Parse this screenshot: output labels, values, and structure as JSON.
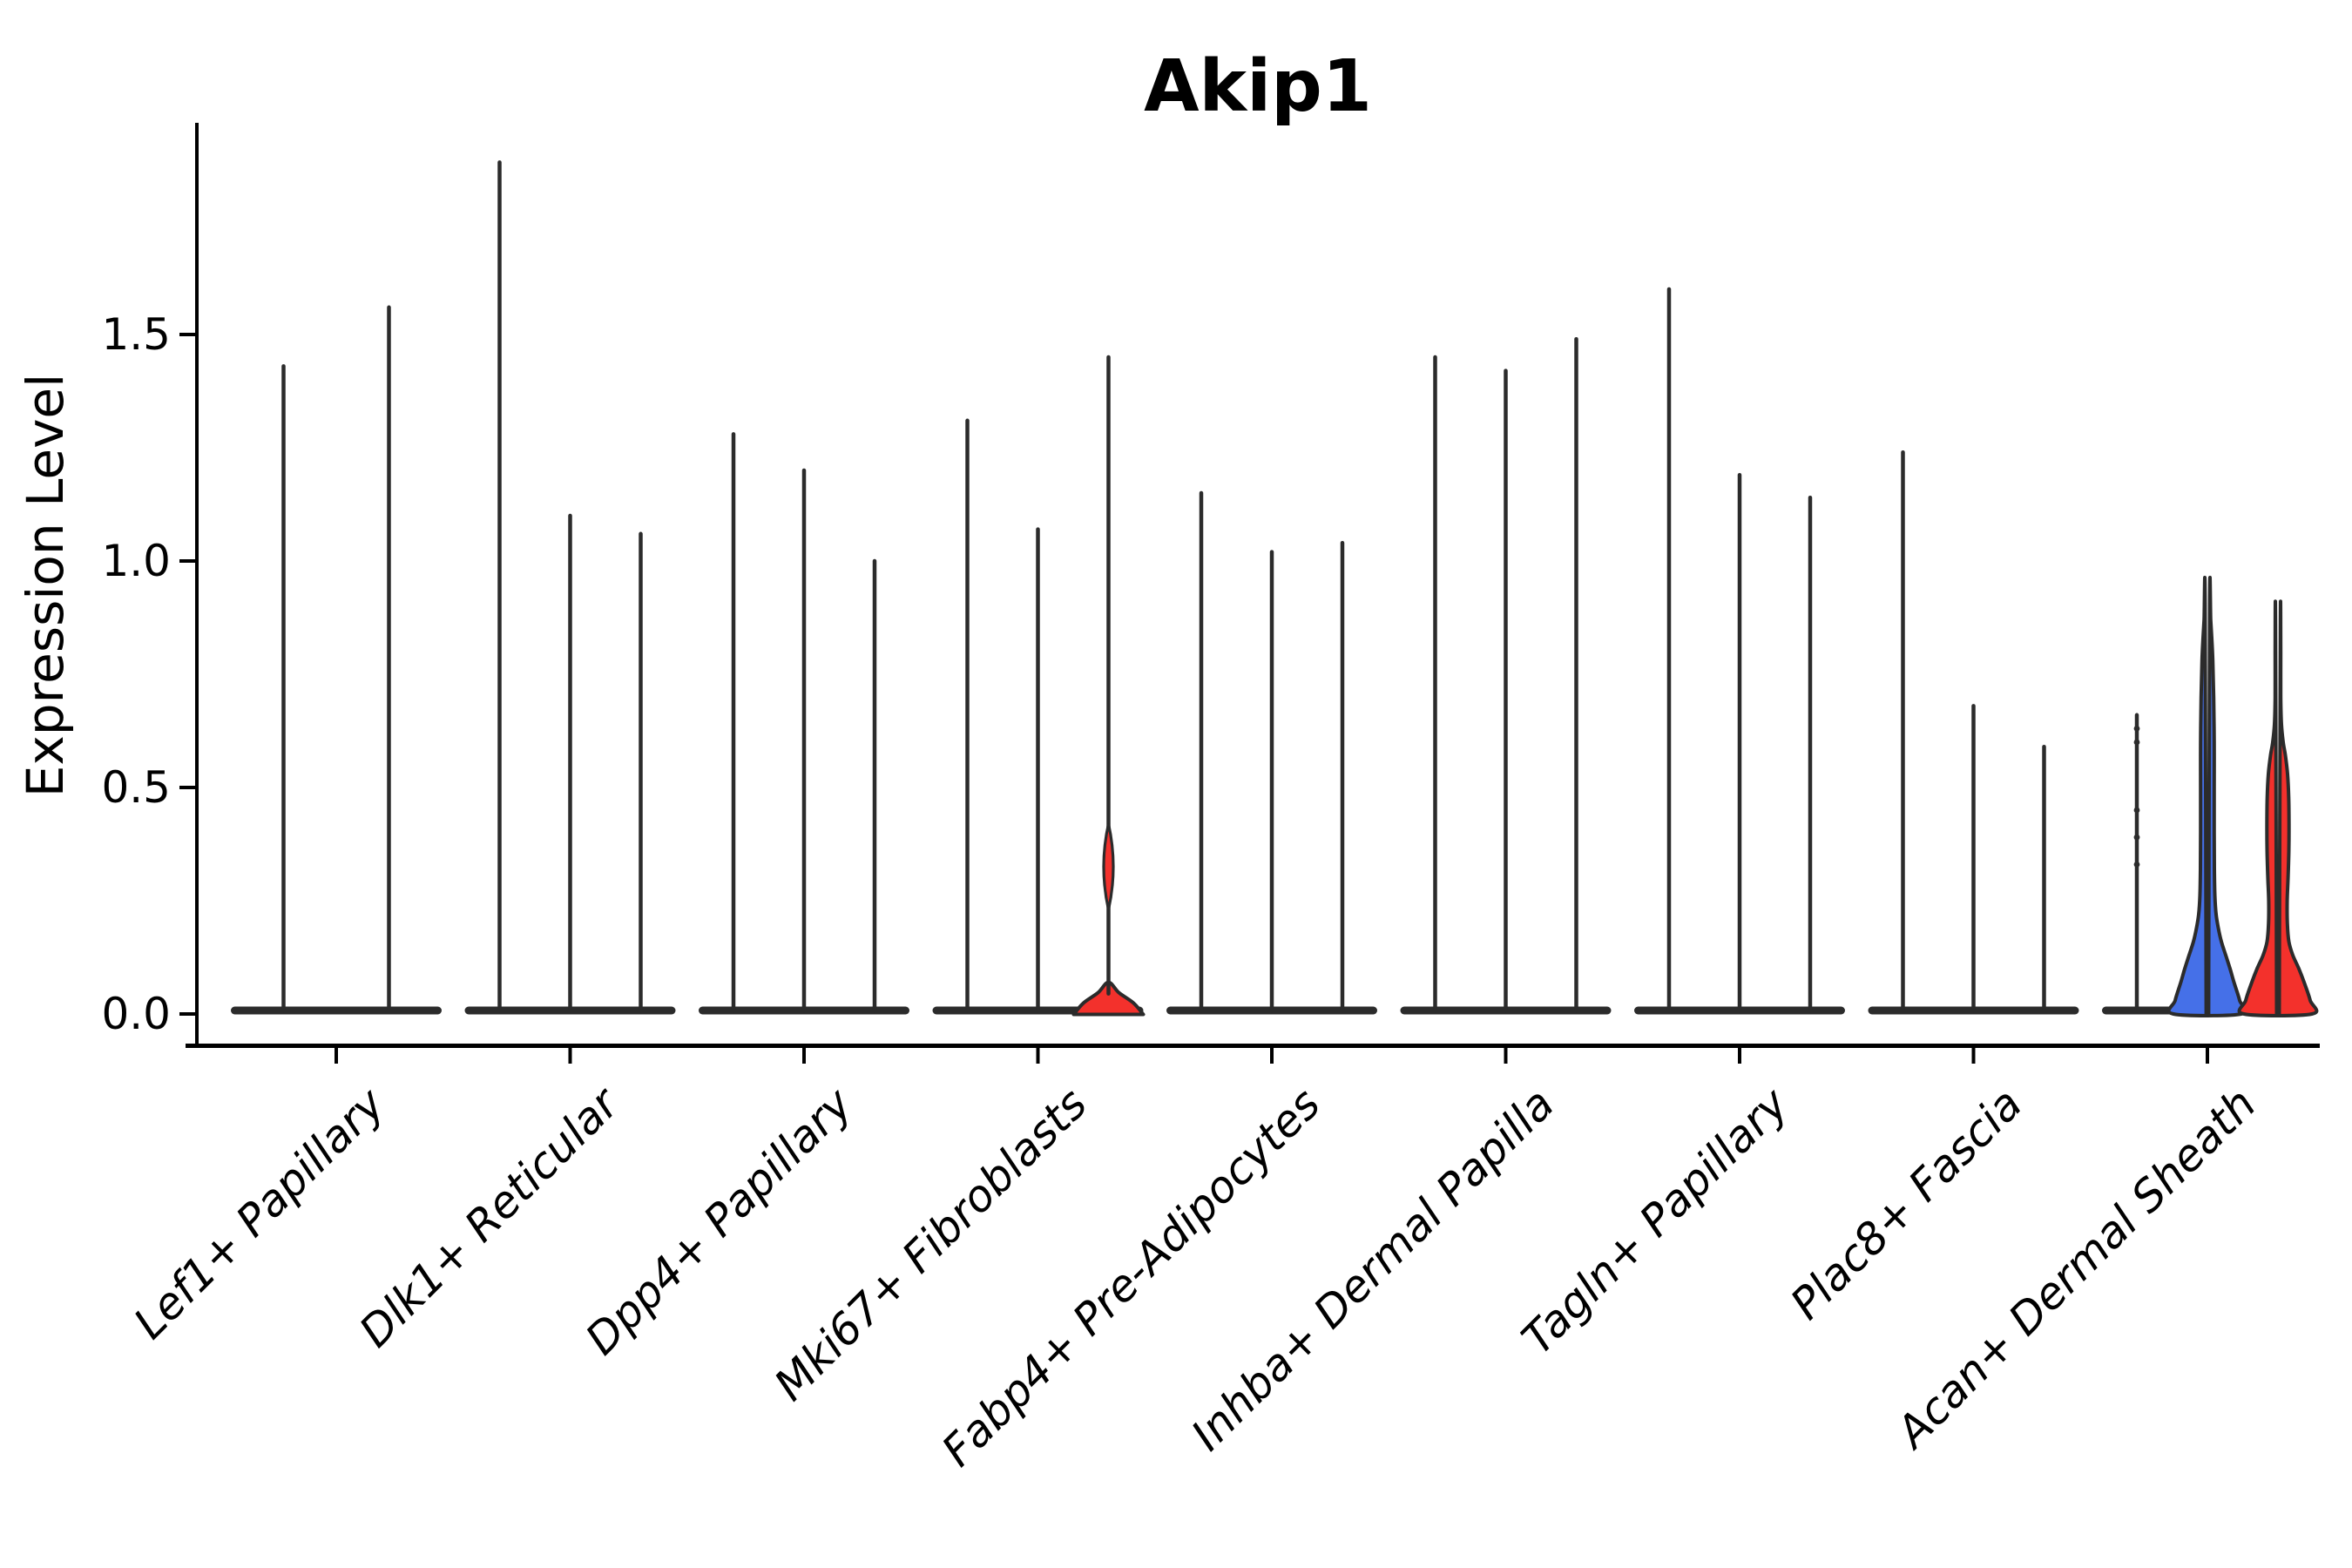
{
  "title": "Akip1",
  "y_axis": {
    "label": "Expression Level",
    "ticks": [
      {
        "label": "0.0",
        "value": 0.0
      },
      {
        "label": "0.5",
        "value": 0.5
      },
      {
        "label": "1.0",
        "value": 1.0
      },
      {
        "label": "1.5",
        "value": 1.5
      }
    ]
  },
  "colors": {
    "outline": "#2b2b2b",
    "blue_fill": "#4570e8",
    "red_fill": "#f3312c",
    "background": "#ffffff"
  },
  "chart_data": {
    "type": "violin",
    "title": "Akip1",
    "xlabel": "",
    "ylabel": "Expression Level",
    "ylim": [
      -0.09,
      1.96
    ],
    "yticks": [
      0.0,
      0.5,
      1.0,
      1.5
    ],
    "grid": false,
    "legend": "none",
    "categories": [
      "Lef1+ Papillary",
      "Dlk1+ Reticular",
      "Dpp4+ Papillary",
      "Mki67+ Fibroblasts",
      "Fabp4+ Pre-Adipocytes",
      "Inhba+ Dermal Papilla",
      "Tagln+ Papillary",
      "Plac8+ Fascia",
      "Acan+ Dermal Sheath"
    ],
    "groups": [
      {
        "label": "Lef1+ Papillary",
        "violins": [
          {
            "kind": "spike",
            "max": 1.43
          },
          {
            "kind": "spike",
            "max": 1.56
          }
        ]
      },
      {
        "label": "Dlk1+ Reticular",
        "violins": [
          {
            "kind": "spike",
            "max": 1.88
          },
          {
            "kind": "spike",
            "max": 1.1
          },
          {
            "kind": "spike",
            "max": 1.06
          }
        ]
      },
      {
        "label": "Dpp4+ Papillary",
        "violins": [
          {
            "kind": "spike",
            "max": 1.28
          },
          {
            "kind": "spike",
            "max": 1.2
          },
          {
            "kind": "spike",
            "max": 1.0
          }
        ]
      },
      {
        "label": "Mki67+ Fibroblasts",
        "violins": [
          {
            "kind": "spike",
            "max": 1.31
          },
          {
            "kind": "spike",
            "max": 1.07
          },
          {
            "kind": "spike",
            "max": 1.45,
            "fill": "#f3312c",
            "dome": {
              "half_width": 40,
              "peak": 0.07
            },
            "lens": {
              "center": 0.325,
              "half_span": 0.095,
              "half_width": 5.5
            }
          }
        ]
      },
      {
        "label": "Fabp4+ Pre-Adipocytes",
        "violins": [
          {
            "kind": "spike",
            "max": 1.15
          },
          {
            "kind": "spike",
            "max": 1.02
          },
          {
            "kind": "spike",
            "max": 1.04
          }
        ]
      },
      {
        "label": "Inhba+ Dermal Papilla",
        "violins": [
          {
            "kind": "spike",
            "max": 1.45
          },
          {
            "kind": "spike",
            "max": 1.42
          },
          {
            "kind": "spike",
            "max": 1.49
          }
        ]
      },
      {
        "label": "Tagln+ Papillary",
        "violins": [
          {
            "kind": "spike",
            "max": 1.6
          },
          {
            "kind": "spike",
            "max": 1.19
          },
          {
            "kind": "spike",
            "max": 1.14
          }
        ]
      },
      {
        "label": "Plac8+ Fascia",
        "violins": [
          {
            "kind": "spike",
            "max": 1.24
          },
          {
            "kind": "spike",
            "max": 0.68
          },
          {
            "kind": "spike",
            "max": 0.59
          }
        ]
      },
      {
        "label": "Acan+ Dermal Sheath",
        "violins": [
          {
            "kind": "spike",
            "max": 0.66,
            "dots": [
              0.33,
              0.39,
              0.45,
              0.6,
              0.63
            ]
          },
          {
            "kind": "filled",
            "max": 0.92,
            "fill": "#4570e8",
            "profile": [
              [
                0,
                39
              ],
              [
                0.03,
                37
              ],
              [
                0.07,
                30.5
              ],
              [
                0.1,
                26
              ],
              [
                0.13,
                21
              ],
              [
                0.16,
                16
              ],
              [
                0.19,
                12.5
              ],
              [
                0.22,
                10
              ],
              [
                0.26,
                8.6
              ],
              [
                0.32,
                8.0
              ],
              [
                0.4,
                7.8
              ],
              [
                0.5,
                7.8
              ],
              [
                0.6,
                7.8
              ],
              [
                0.7,
                7.2
              ],
              [
                0.78,
                6.2
              ],
              [
                0.83,
                5.0
              ],
              [
                0.87,
                3.8
              ],
              [
                0.905,
                2.6
              ],
              [
                0.92,
                1.4
              ]
            ]
          },
          {
            "kind": "filled",
            "max": 0.9,
            "fill": "#f3312c",
            "profile": [
              [
                0,
                39
              ],
              [
                0.03,
                37
              ],
              [
                0.07,
                30
              ],
              [
                0.1,
                24
              ],
              [
                0.13,
                17
              ],
              [
                0.16,
                12.5
              ],
              [
                0.2,
                10.8
              ],
              [
                0.25,
                10.6
              ],
              [
                0.3,
                11.6
              ],
              [
                0.36,
                12.5
              ],
              [
                0.42,
                12.7
              ],
              [
                0.48,
                12.3
              ],
              [
                0.53,
                11.0
              ],
              [
                0.57,
                8.6
              ],
              [
                0.6,
                6.0
              ],
              [
                0.64,
                4.0
              ],
              [
                0.7,
                3.2
              ],
              [
                0.8,
                3.2
              ],
              [
                0.86,
                2.8
              ],
              [
                0.895,
                1.5
              ]
            ]
          }
        ]
      }
    ]
  }
}
